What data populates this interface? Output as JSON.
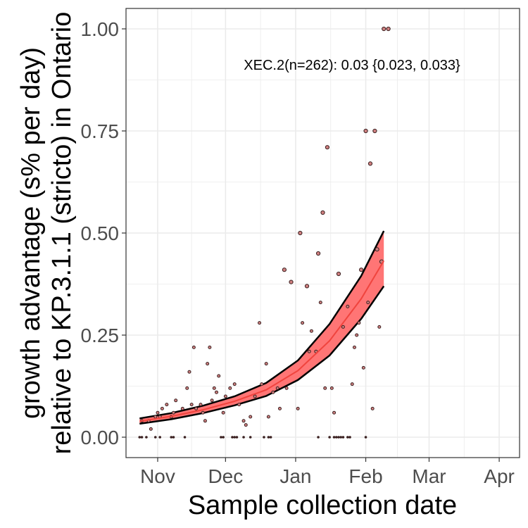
{
  "chart_data": {
    "type": "scatter",
    "xlabel": "Sample collection date",
    "ylabel_line1": "growth advantage (s% per day)",
    "ylabel_line2": "relative to KP.3.1.1 (stricto) in Ontario",
    "annotation": "XEC.2(n=262): 0.03 {0.023, 0.033}",
    "xlim": [
      "2024-10-18",
      "2025-04-10"
    ],
    "ylim": [
      -0.05,
      1.05
    ],
    "x_ticks": [
      {
        "date": "2024-11-01",
        "label": "Nov"
      },
      {
        "date": "2024-12-01",
        "label": "Dec"
      },
      {
        "date": "2025-01-01",
        "label": "Jan"
      },
      {
        "date": "2025-02-01",
        "label": "Feb"
      },
      {
        "date": "2025-03-01",
        "label": "Mar"
      },
      {
        "date": "2025-04-01",
        "label": "Apr"
      }
    ],
    "y_ticks": [
      {
        "value": 0.0,
        "label": "0.00"
      },
      {
        "value": 0.25,
        "label": "0.25"
      },
      {
        "value": 0.5,
        "label": "0.50"
      },
      {
        "value": 0.75,
        "label": "0.75"
      },
      {
        "value": 1.0,
        "label": "1.00"
      }
    ],
    "grid": true,
    "colors": {
      "ribbon": "#ff7575",
      "fit": "#f0443e",
      "bounds": "#000000",
      "point_fill": "#d08080",
      "point_stroke": "#3a2020",
      "grid": "#ebebeb",
      "panel_border": "#333333"
    },
    "fit": {
      "x": [
        "2024-10-24",
        "2024-11-07",
        "2024-11-21",
        "2024-12-05",
        "2024-12-19",
        "2025-01-02",
        "2025-01-16",
        "2025-01-30",
        "2025-02-09"
      ],
      "y": [
        0.039,
        0.051,
        0.067,
        0.088,
        0.116,
        0.163,
        0.236,
        0.339,
        0.432
      ],
      "lower": [
        0.033,
        0.044,
        0.059,
        0.078,
        0.101,
        0.14,
        0.2,
        0.29,
        0.37
      ],
      "upper": [
        0.046,
        0.059,
        0.077,
        0.1,
        0.133,
        0.188,
        0.277,
        0.395,
        0.505
      ]
    },
    "points": [
      {
        "x": "2024-10-24",
        "y": 0.0
      },
      {
        "x": "2024-10-25",
        "y": 0.0
      },
      {
        "x": "2024-10-27",
        "y": 0.0
      },
      {
        "x": "2024-10-31",
        "y": 0.0
      },
      {
        "x": "2024-11-02",
        "y": 0.0
      },
      {
        "x": "2024-11-07",
        "y": 0.0
      },
      {
        "x": "2024-11-08",
        "y": 0.0
      },
      {
        "x": "2024-11-13",
        "y": 0.0
      },
      {
        "x": "2024-11-29",
        "y": 0.0
      },
      {
        "x": "2024-11-30",
        "y": 0.0
      },
      {
        "x": "2024-12-04",
        "y": 0.0
      },
      {
        "x": "2024-12-05",
        "y": 0.0
      },
      {
        "x": "2024-12-06",
        "y": 0.0
      },
      {
        "x": "2024-12-09",
        "y": 0.0
      },
      {
        "x": "2024-12-12",
        "y": 0.0
      },
      {
        "x": "2024-12-18",
        "y": 0.0
      },
      {
        "x": "2024-12-20",
        "y": 0.0
      },
      {
        "x": "2024-12-21",
        "y": 0.0
      },
      {
        "x": "2025-01-11",
        "y": 0.0
      },
      {
        "x": "2025-01-16",
        "y": 0.0
      },
      {
        "x": "2025-01-18",
        "y": 0.0
      },
      {
        "x": "2025-01-19",
        "y": 0.0
      },
      {
        "x": "2025-01-20",
        "y": 0.0
      },
      {
        "x": "2025-01-21",
        "y": 0.0
      },
      {
        "x": "2025-01-22",
        "y": 0.0
      },
      {
        "x": "2025-01-24",
        "y": 0.0
      },
      {
        "x": "2025-01-25",
        "y": 0.0
      },
      {
        "x": "2025-02-01",
        "y": 0.0
      },
      {
        "x": "2024-10-25",
        "y": 0.04
      },
      {
        "x": "2024-10-28",
        "y": 0.04
      },
      {
        "x": "2024-10-29",
        "y": 0.02
      },
      {
        "x": "2024-10-31",
        "y": 0.05
      },
      {
        "x": "2024-11-01",
        "y": 0.06
      },
      {
        "x": "2024-11-02",
        "y": 0.05
      },
      {
        "x": "2024-11-03",
        "y": 0.07
      },
      {
        "x": "2024-11-05",
        "y": 0.08
      },
      {
        "x": "2024-11-07",
        "y": 0.05
      },
      {
        "x": "2024-11-08",
        "y": 0.06
      },
      {
        "x": "2024-11-09",
        "y": 0.09
      },
      {
        "x": "2024-11-12",
        "y": 0.07
      },
      {
        "x": "2024-11-14",
        "y": 0.12
      },
      {
        "x": "2024-11-15",
        "y": 0.16
      },
      {
        "x": "2024-11-16",
        "y": 0.08
      },
      {
        "x": "2024-11-17",
        "y": 0.22
      },
      {
        "x": "2024-11-18",
        "y": 0.07
      },
      {
        "x": "2024-11-20",
        "y": 0.08
      },
      {
        "x": "2024-11-21",
        "y": 0.06
      },
      {
        "x": "2024-11-22",
        "y": 0.04
      },
      {
        "x": "2024-11-23",
        "y": 0.18
      },
      {
        "x": "2024-11-24",
        "y": 0.22
      },
      {
        "x": "2024-11-25",
        "y": 0.09
      },
      {
        "x": "2024-11-26",
        "y": 0.12
      },
      {
        "x": "2024-11-27",
        "y": 0.11
      },
      {
        "x": "2024-11-28",
        "y": 0.15
      },
      {
        "x": "2024-11-30",
        "y": 0.06
      },
      {
        "x": "2024-12-01",
        "y": 0.1
      },
      {
        "x": "2024-12-03",
        "y": 0.12
      },
      {
        "x": "2024-12-05",
        "y": 0.13
      },
      {
        "x": "2024-12-07",
        "y": 0.08
      },
      {
        "x": "2024-12-09",
        "y": 0.04
      },
      {
        "x": "2024-12-10",
        "y": 0.03
      },
      {
        "x": "2024-12-12",
        "y": 0.05
      },
      {
        "x": "2024-12-14",
        "y": 0.1
      },
      {
        "x": "2024-12-16",
        "y": 0.28
      },
      {
        "x": "2024-12-17",
        "y": 0.13
      },
      {
        "x": "2024-12-19",
        "y": 0.18
      },
      {
        "x": "2024-12-20",
        "y": 0.05
      },
      {
        "x": "2024-12-22",
        "y": 0.11
      },
      {
        "x": "2024-12-24",
        "y": 0.12
      },
      {
        "x": "2024-12-25",
        "y": 0.07
      },
      {
        "x": "2024-12-27",
        "y": 0.41
      },
      {
        "x": "2024-12-28",
        "y": 0.12
      },
      {
        "x": "2024-12-30",
        "y": 0.38
      },
      {
        "x": "2025-01-02",
        "y": 0.07
      },
      {
        "x": "2025-01-03",
        "y": 0.5
      },
      {
        "x": "2025-01-04",
        "y": 0.28
      },
      {
        "x": "2025-01-06",
        "y": 0.37
      },
      {
        "x": "2025-01-07",
        "y": 0.21
      },
      {
        "x": "2025-01-08",
        "y": 0.26
      },
      {
        "x": "2025-01-10",
        "y": 0.21
      },
      {
        "x": "2025-01-11",
        "y": 0.45
      },
      {
        "x": "2025-01-12",
        "y": 0.33
      },
      {
        "x": "2025-01-13",
        "y": 0.55
      },
      {
        "x": "2025-01-14",
        "y": 0.12
      },
      {
        "x": "2025-01-15",
        "y": 0.71
      },
      {
        "x": "2025-01-17",
        "y": 0.12
      },
      {
        "x": "2025-01-18",
        "y": 0.06
      },
      {
        "x": "2025-01-20",
        "y": 0.4
      },
      {
        "x": "2025-01-22",
        "y": 0.27
      },
      {
        "x": "2025-01-24",
        "y": 0.32
      },
      {
        "x": "2025-01-26",
        "y": 0.13
      },
      {
        "x": "2025-01-27",
        "y": 0.22
      },
      {
        "x": "2025-01-28",
        "y": 0.25
      },
      {
        "x": "2025-01-29",
        "y": 0.28
      },
      {
        "x": "2025-01-30",
        "y": 0.41
      },
      {
        "x": "2025-01-31",
        "y": 0.17
      },
      {
        "x": "2025-02-01",
        "y": 0.75
      },
      {
        "x": "2025-02-02",
        "y": 0.33
      },
      {
        "x": "2025-02-03",
        "y": 0.67
      },
      {
        "x": "2025-02-04",
        "y": 0.07
      },
      {
        "x": "2025-02-05",
        "y": 0.75
      },
      {
        "x": "2025-02-06",
        "y": 0.46
      },
      {
        "x": "2025-02-07",
        "y": 0.27
      },
      {
        "x": "2025-02-08",
        "y": 0.43
      },
      {
        "x": "2025-02-09",
        "y": 1.0
      },
      {
        "x": "2025-02-11",
        "y": 1.0
      }
    ]
  }
}
